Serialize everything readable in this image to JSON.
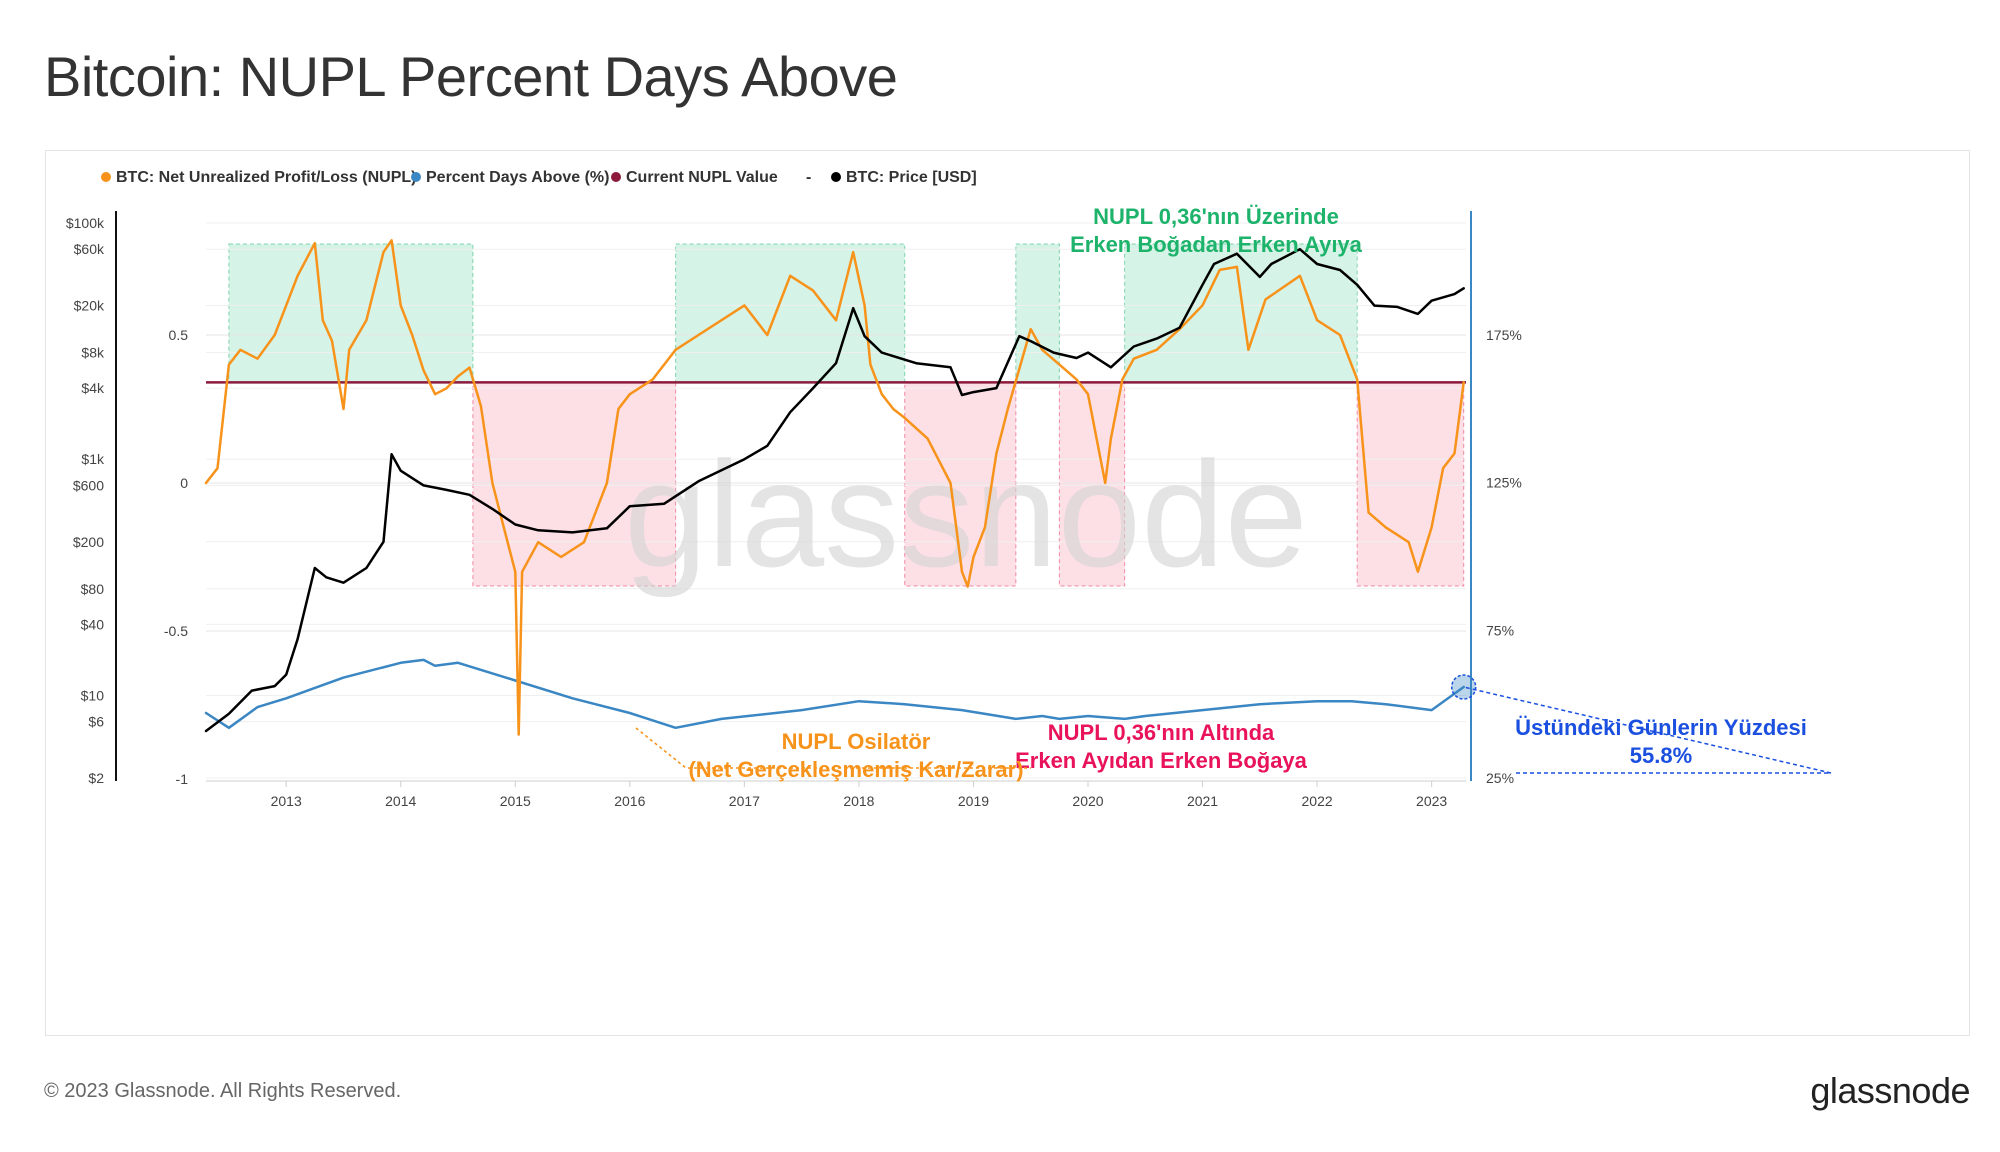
{
  "page": {
    "title": "Bitcoin: NUPL Percent Days Above",
    "copyright": "© 2023 Glassnode. All Rights Reserved.",
    "logo": "glassnode",
    "watermark": "glassnode"
  },
  "legend": [
    {
      "label": "BTC: Net Unrealized Profit/Loss (NUPL)",
      "color": "#f7931a"
    },
    {
      "label": "Percent Days Above (%)",
      "color": "#3b87c4"
    },
    {
      "label": "Current NUPL Value",
      "color": "#8b1a3c"
    },
    {
      "label": "-",
      "color": ""
    },
    {
      "label": "BTC: Price [USD]",
      "color": "#000000"
    }
  ],
  "colors": {
    "nupl": "#f7931a",
    "percent": "#3b87c4",
    "current": "#8b1a3c",
    "price": "#000000",
    "green_zone": "#d6f3e7",
    "pink_zone": "#fde0e6",
    "right_axis": "#3b87c4"
  },
  "annotations": {
    "above": {
      "line1": "NUPL 0,36'nın Üzerinde",
      "line2": "Erken Boğadan Erken Ayıya",
      "color": "#1db36b"
    },
    "below": {
      "line1": "NUPL 0,36'nın Altında",
      "line2": "Erken Ayıdan Erken Boğaya",
      "color": "#e8135a"
    },
    "oscillator": {
      "line1": "NUPL Osilatör",
      "line2": "(Net Gerçekleşmemiş Kar/Zarar)",
      "color": "#f7931a"
    },
    "percent": {
      "line1": "Üstündeki Günlerin Yüzdesi",
      "line2": "55.8%",
      "color": "#1a4fe0"
    }
  },
  "chart_data": {
    "type": "line",
    "title": "Bitcoin: NUPL Percent Days Above",
    "x_ticks": [
      "2013",
      "2014",
      "2015",
      "2016",
      "2017",
      "2018",
      "2019",
      "2020",
      "2021",
      "2022",
      "2023"
    ],
    "x_range": [
      2012.3,
      2023.3
    ],
    "left_price_axis": {
      "scale": "log",
      "ticks": [
        {
          "value": 100000,
          "label": "$100k"
        },
        {
          "value": 60000,
          "label": "$60k"
        },
        {
          "value": 20000,
          "label": "$20k"
        },
        {
          "value": 8000,
          "label": "$8k"
        },
        {
          "value": 4000,
          "label": "$4k"
        },
        {
          "value": 1000,
          "label": "$1k"
        },
        {
          "value": 600,
          "label": "$600"
        },
        {
          "value": 200,
          "label": "$200"
        },
        {
          "value": 80,
          "label": "$80"
        },
        {
          "value": 40,
          "label": "$40"
        },
        {
          "value": 10,
          "label": "$10"
        },
        {
          "value": 6,
          "label": "$6"
        },
        {
          "value": 2,
          "label": "$2"
        }
      ]
    },
    "left_nupl_axis": {
      "ticks": [
        {
          "value": 0.5,
          "label": "0.5"
        },
        {
          "value": 0,
          "label": "0"
        },
        {
          "value": -0.5,
          "label": "-0.5"
        },
        {
          "value": -1,
          "label": "-1"
        }
      ]
    },
    "right_percent_axis": {
      "ticks": [
        {
          "value": 175,
          "label": "175%"
        },
        {
          "value": 125,
          "label": "125%"
        },
        {
          "value": 75,
          "label": "75%"
        },
        {
          "value": 25,
          "label": "25%"
        }
      ]
    },
    "current_nupl_value": 0.34,
    "percent_days_above_latest": 55.8,
    "zones_above": [
      [
        2012.5,
        2014.63
      ],
      [
        2016.4,
        2018.4
      ],
      [
        2019.37,
        2019.75
      ],
      [
        2020.32,
        2022.35
      ]
    ],
    "zones_below": [
      [
        2014.63,
        2016.4
      ],
      [
        2018.4,
        2019.37
      ],
      [
        2019.75,
        2020.32
      ],
      [
        2022.35,
        2023.28
      ]
    ],
    "series": [
      {
        "name": "BTC: Net Unrealized Profit/Loss (NUPL)",
        "x": [
          2012.3,
          2012.4,
          2012.5,
          2012.6,
          2012.75,
          2012.9,
          2013.0,
          2013.1,
          2013.25,
          2013.32,
          2013.4,
          2013.5,
          2013.55,
          2013.7,
          2013.85,
          2013.92,
          2014.0,
          2014.1,
          2014.2,
          2014.3,
          2014.4,
          2014.5,
          2014.6,
          2014.7,
          2014.8,
          2014.9,
          2015.0,
          2015.03,
          2015.06,
          2015.2,
          2015.4,
          2015.6,
          2015.7,
          2015.8,
          2015.9,
          2016.0,
          2016.2,
          2016.4,
          2016.6,
          2016.8,
          2017.0,
          2017.2,
          2017.4,
          2017.6,
          2017.8,
          2017.95,
          2018.05,
          2018.1,
          2018.2,
          2018.3,
          2018.4,
          2018.6,
          2018.8,
          2018.9,
          2018.95,
          2019.0,
          2019.1,
          2019.2,
          2019.3,
          2019.5,
          2019.6,
          2019.75,
          2019.9,
          2020.0,
          2020.15,
          2020.2,
          2020.3,
          2020.4,
          2020.6,
          2020.8,
          2021.0,
          2021.15,
          2021.3,
          2021.4,
          2021.55,
          2021.7,
          2021.85,
          2022.0,
          2022.2,
          2022.35,
          2022.45,
          2022.6,
          2022.8,
          2022.88,
          2023.0,
          2023.1,
          2023.2,
          2023.28
        ],
        "values": [
          0.0,
          0.05,
          0.4,
          0.45,
          0.42,
          0.5,
          0.6,
          0.7,
          0.81,
          0.55,
          0.48,
          0.25,
          0.45,
          0.55,
          0.78,
          0.82,
          0.6,
          0.5,
          0.38,
          0.3,
          0.32,
          0.36,
          0.39,
          0.26,
          0.0,
          -0.15,
          -0.3,
          -0.85,
          -0.3,
          -0.2,
          -0.25,
          -0.2,
          -0.1,
          0.0,
          0.25,
          0.3,
          0.35,
          0.45,
          0.5,
          0.55,
          0.6,
          0.5,
          0.7,
          0.65,
          0.55,
          0.78,
          0.6,
          0.4,
          0.3,
          0.25,
          0.22,
          0.15,
          0.0,
          -0.3,
          -0.35,
          -0.25,
          -0.15,
          0.1,
          0.25,
          0.52,
          0.45,
          0.4,
          0.35,
          0.3,
          0.0,
          0.15,
          0.35,
          0.42,
          0.45,
          0.52,
          0.6,
          0.72,
          0.73,
          0.45,
          0.62,
          0.66,
          0.7,
          0.55,
          0.5,
          0.35,
          -0.1,
          -0.15,
          -0.2,
          -0.3,
          -0.15,
          0.05,
          0.1,
          0.34
        ]
      },
      {
        "name": "BTC: Price [USD]",
        "x": [
          2012.3,
          2012.5,
          2012.7,
          2012.9,
          2013.0,
          2013.1,
          2013.25,
          2013.35,
          2013.5,
          2013.7,
          2013.85,
          2013.92,
          2014.0,
          2014.2,
          2014.4,
          2014.6,
          2014.8,
          2015.0,
          2015.2,
          2015.5,
          2015.8,
          2016.0,
          2016.3,
          2016.6,
          2017.0,
          2017.2,
          2017.4,
          2017.6,
          2017.8,
          2017.95,
          2018.05,
          2018.2,
          2018.5,
          2018.8,
          2018.9,
          2019.0,
          2019.2,
          2019.4,
          2019.5,
          2019.7,
          2019.9,
          2020.0,
          2020.2,
          2020.4,
          2020.6,
          2020.8,
          2021.0,
          2021.1,
          2021.3,
          2021.5,
          2021.6,
          2021.85,
          2022.0,
          2022.2,
          2022.35,
          2022.5,
          2022.7,
          2022.88,
          2023.0,
          2023.2,
          2023.28
        ],
        "values": [
          5,
          7,
          11,
          12,
          15,
          30,
          120,
          100,
          90,
          120,
          200,
          1100,
          800,
          600,
          550,
          500,
          380,
          280,
          250,
          240,
          260,
          400,
          420,
          650,
          1000,
          1300,
          2500,
          4000,
          6500,
          19000,
          11000,
          8000,
          6500,
          6000,
          3500,
          3700,
          4000,
          11000,
          10000,
          8000,
          7200,
          8000,
          6000,
          9000,
          10500,
          13000,
          30000,
          45000,
          55000,
          35000,
          45000,
          60000,
          45000,
          40000,
          30000,
          20000,
          19500,
          17000,
          22000,
          25000,
          28000
        ]
      },
      {
        "name": "Percent Days Above (%)",
        "x": [
          2012.3,
          2012.5,
          2012.75,
          2013.0,
          2013.5,
          2014.0,
          2014.2,
          2014.3,
          2014.5,
          2015.0,
          2015.5,
          2016.0,
          2016.4,
          2016.8,
          2017.5,
          2018.0,
          2018.4,
          2018.9,
          2019.37,
          2019.6,
          2019.75,
          2020.0,
          2020.32,
          2020.5,
          2021.0,
          2021.5,
          2022.0,
          2022.3,
          2022.6,
          2023.0,
          2023.28
        ],
        "values": [
          47,
          42,
          49,
          52,
          59,
          64,
          65,
          63,
          64,
          58,
          52,
          47,
          42,
          45,
          48,
          51,
          50,
          48,
          45,
          46,
          45,
          46,
          45,
          46,
          48,
          50,
          51,
          51,
          50,
          48,
          55.8
        ]
      }
    ]
  }
}
